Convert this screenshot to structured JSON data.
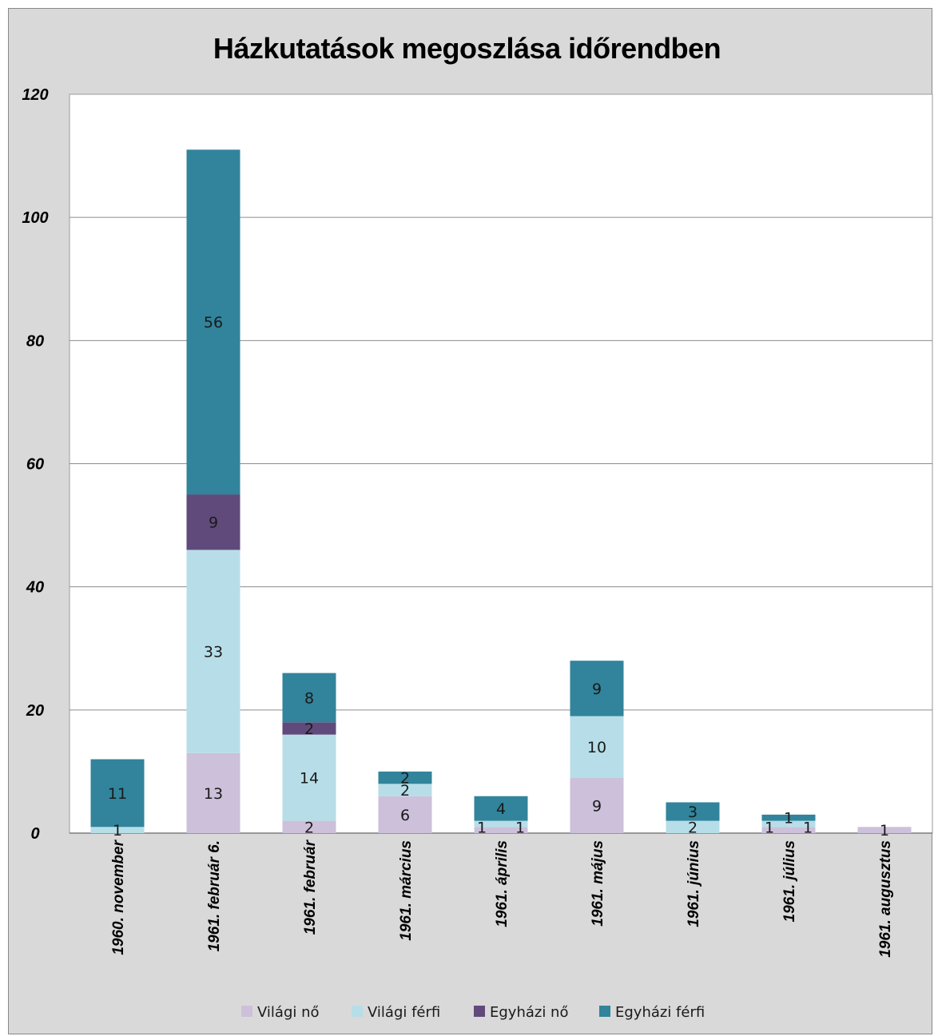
{
  "chart_data": {
    "type": "bar",
    "stacked": true,
    "title": "Házkutatások megoszlása időrendben",
    "xlabel": "",
    "ylabel": "",
    "ylim": [
      0,
      120
    ],
    "yticks": [
      0,
      20,
      40,
      60,
      80,
      100,
      120
    ],
    "grid": true,
    "legend_position": "bottom",
    "categories": [
      "1960. november",
      "1961. február 6.",
      "1961. február",
      "1961. március",
      "1961. április",
      "1961. május",
      "1961. június",
      "1961. július",
      "1961. augusztus"
    ],
    "series": [
      {
        "name": "Világi nő",
        "color": "#ccc0da",
        "values": [
          0,
          13,
          2,
          6,
          1,
          9,
          0,
          1,
          1
        ],
        "labels": [
          "",
          "13",
          "2",
          "6",
          "1",
          "9",
          "",
          "1",
          "1"
        ]
      },
      {
        "name": "Világi férfi",
        "color": "#b7dee8",
        "values": [
          1,
          33,
          14,
          2,
          1,
          10,
          2,
          1,
          0
        ],
        "labels": [
          "1",
          "33",
          "14",
          "2",
          "1",
          "10",
          "2",
          "1",
          ""
        ]
      },
      {
        "name": "Egyházi nő",
        "color": "#604a7b",
        "values": [
          0,
          9,
          2,
          0,
          0,
          0,
          0,
          0,
          0
        ],
        "labels": [
          "",
          "9",
          "2",
          "",
          "",
          "",
          "",
          "",
          ""
        ]
      },
      {
        "name": "Egyházi férfi",
        "color": "#31849b",
        "values": [
          11,
          56,
          8,
          2,
          4,
          9,
          3,
          1,
          0
        ],
        "labels": [
          "11",
          "56",
          "8",
          "2",
          "4",
          "9",
          "3",
          "1",
          ""
        ]
      }
    ]
  }
}
